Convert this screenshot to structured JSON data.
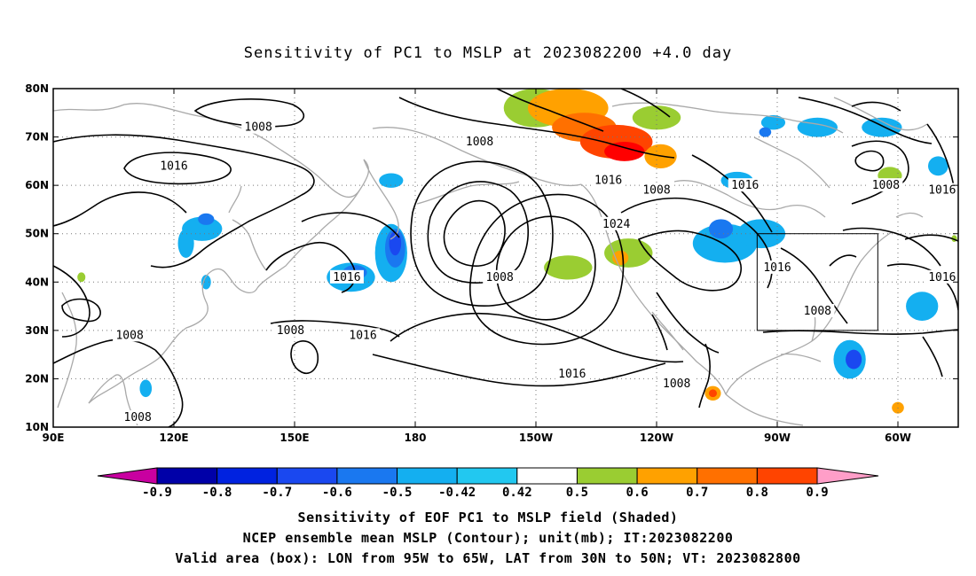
{
  "title": "Sensitivity of PC1 to MSLP at 2023082200 +4.0 day",
  "axes": {
    "lon_ticks": [
      {
        "lon": 90,
        "label": "90E"
      },
      {
        "lon": 120,
        "label": "120E"
      },
      {
        "lon": 150,
        "label": "150E"
      },
      {
        "lon": 180,
        "label": "180"
      },
      {
        "lon": 210,
        "label": "150W"
      },
      {
        "lon": 240,
        "label": "120W"
      },
      {
        "lon": 270,
        "label": "90W"
      },
      {
        "lon": 300,
        "label": "60W"
      }
    ],
    "lat_ticks": [
      {
        "lat": 10,
        "label": "10N"
      },
      {
        "lat": 20,
        "label": "20N"
      },
      {
        "lat": 30,
        "label": "30N"
      },
      {
        "lat": 40,
        "label": "40N"
      },
      {
        "lat": 50,
        "label": "50N"
      },
      {
        "lat": 60,
        "label": "60N"
      },
      {
        "lat": 70,
        "label": "70N"
      },
      {
        "lat": 80,
        "label": "80N"
      }
    ],
    "lon_range": [
      90,
      315
    ],
    "lat_range": [
      10,
      80
    ]
  },
  "valid_box": {
    "lon": [
      265,
      295
    ],
    "lat": [
      30,
      50
    ]
  },
  "contour_labels": [
    {
      "text": "1008",
      "lon": 141,
      "lat": 72
    },
    {
      "text": "1016",
      "lon": 120,
      "lat": 64
    },
    {
      "text": "1008",
      "lon": 196,
      "lat": 69
    },
    {
      "text": "1016",
      "lon": 228,
      "lat": 61
    },
    {
      "text": "1008",
      "lon": 240,
      "lat": 59
    },
    {
      "text": "1016",
      "lon": 262,
      "lat": 60
    },
    {
      "text": "1008",
      "lon": 297,
      "lat": 60
    },
    {
      "text": "1016",
      "lon": 311,
      "lat": 59
    },
    {
      "text": "1024",
      "lon": 230,
      "lat": 52
    },
    {
      "text": "1008",
      "lon": 201,
      "lat": 41
    },
    {
      "text": "1016",
      "lon": 163,
      "lat": 41
    },
    {
      "text": "1016",
      "lon": 270,
      "lat": 43
    },
    {
      "text": "1016",
      "lon": 311,
      "lat": 41
    },
    {
      "text": "1008",
      "lon": 280,
      "lat": 34
    },
    {
      "text": "1008",
      "lon": 109,
      "lat": 29
    },
    {
      "text": "1008",
      "lon": 149,
      "lat": 30
    },
    {
      "text": "1016",
      "lon": 167,
      "lat": 29
    },
    {
      "text": "1016",
      "lon": 219,
      "lat": 21
    },
    {
      "text": "1008",
      "lon": 245,
      "lat": 19
    },
    {
      "text": "1008",
      "lon": 111,
      "lat": 12
    }
  ],
  "shaded_regions": [
    {
      "lon": 210,
      "lat": 76,
      "rx": 8,
      "ry": 4,
      "value": 0.5
    },
    {
      "lon": 218,
      "lat": 76,
      "rx": 10,
      "ry": 4,
      "value": 0.6
    },
    {
      "lon": 222,
      "lat": 72,
      "rx": 8,
      "ry": 3,
      "value": 0.7
    },
    {
      "lon": 230,
      "lat": 69,
      "rx": 9,
      "ry": 3.5,
      "value": 0.8
    },
    {
      "lon": 232,
      "lat": 67,
      "rx": 5,
      "ry": 2,
      "value": 0.9
    },
    {
      "lon": 241,
      "lat": 66,
      "rx": 4,
      "ry": 2.5,
      "value": 0.6
    },
    {
      "lon": 240,
      "lat": 74,
      "rx": 6,
      "ry": 2.5,
      "value": 0.5
    },
    {
      "lon": 218,
      "lat": 43,
      "rx": 6,
      "ry": 2.5,
      "value": 0.5
    },
    {
      "lon": 233,
      "lat": 46,
      "rx": 6,
      "ry": 3,
      "value": 0.5
    },
    {
      "lon": 231,
      "lat": 45,
      "rx": 2,
      "ry": 1.5,
      "value": 0.6
    },
    {
      "lon": 298,
      "lat": 62,
      "rx": 3,
      "ry": 1.8,
      "value": 0.5
    },
    {
      "lon": 257,
      "lat": 48,
      "rx": 8,
      "ry": 4,
      "value": -0.5
    },
    {
      "lon": 266,
      "lat": 50,
      "rx": 6,
      "ry": 3,
      "value": -0.5
    },
    {
      "lon": 256,
      "lat": 51,
      "rx": 3,
      "ry": 2,
      "value": -0.6
    },
    {
      "lon": 260,
      "lat": 61,
      "rx": 4,
      "ry": 1.8,
      "value": -0.5
    },
    {
      "lon": 174,
      "lat": 46,
      "rx": 4,
      "ry": 6,
      "value": -0.5
    },
    {
      "lon": 175,
      "lat": 47,
      "rx": 2.5,
      "ry": 4,
      "value": -0.6
    },
    {
      "lon": 175,
      "lat": 48,
      "rx": 1.5,
      "ry": 2.5,
      "value": -0.7
    },
    {
      "lon": 164,
      "lat": 41,
      "rx": 6,
      "ry": 3,
      "value": -0.5
    },
    {
      "lon": 165,
      "lat": 42,
      "rx": 3,
      "ry": 1.5,
      "value": -0.6
    },
    {
      "lon": 174,
      "lat": 61,
      "rx": 3,
      "ry": 1.5,
      "value": -0.5
    },
    {
      "lon": 127,
      "lat": 51,
      "rx": 5,
      "ry": 2.5,
      "value": -0.5
    },
    {
      "lon": 128,
      "lat": 53,
      "rx": 2,
      "ry": 1.2,
      "value": -0.6
    },
    {
      "lon": 123,
      "lat": 48,
      "rx": 2,
      "ry": 3,
      "value": -0.5
    },
    {
      "lon": 288,
      "lat": 24,
      "rx": 4,
      "ry": 4,
      "value": -0.5
    },
    {
      "lon": 289,
      "lat": 24,
      "rx": 2,
      "ry": 2,
      "value": -0.7
    },
    {
      "lon": 306,
      "lat": 35,
      "rx": 4,
      "ry": 3,
      "value": -0.5
    },
    {
      "lon": 280,
      "lat": 72,
      "rx": 5,
      "ry": 2,
      "value": -0.5
    },
    {
      "lon": 296,
      "lat": 72,
      "rx": 5,
      "ry": 2,
      "value": -0.5
    },
    {
      "lon": 269,
      "lat": 73,
      "rx": 3,
      "ry": 1.5,
      "value": -0.5
    },
    {
      "lon": 267,
      "lat": 71,
      "rx": 1.5,
      "ry": 1,
      "value": -0.6
    },
    {
      "lon": 310,
      "lat": 64,
      "rx": 2.5,
      "ry": 2,
      "value": -0.5
    },
    {
      "lon": 113,
      "lat": 18,
      "rx": 1.5,
      "ry": 1.8,
      "value": -0.5
    },
    {
      "lon": 128,
      "lat": 40,
      "rx": 1.2,
      "ry": 1.5,
      "value": -0.5
    },
    {
      "lon": 254,
      "lat": 17,
      "rx": 2,
      "ry": 1.5,
      "value": 0.6
    },
    {
      "lon": 254,
      "lat": 17,
      "rx": 1,
      "ry": 0.8,
      "value": 0.8
    },
    {
      "lon": 300,
      "lat": 14,
      "rx": 1.5,
      "ry": 1.2,
      "value": 0.6
    },
    {
      "lon": 97,
      "lat": 41,
      "rx": 1,
      "ry": 1,
      "value": 0.5
    },
    {
      "lon": 314,
      "lat": 49,
      "rx": 0.7,
      "ry": 0.7,
      "value": 0.5
    }
  ],
  "colorbar": {
    "levels": [
      "-0.9",
      "-0.8",
      "-0.7",
      "-0.6",
      "-0.5",
      "-0.42",
      "0.42",
      "0.5",
      "0.6",
      "0.7",
      "0.8",
      "0.9"
    ],
    "colors": [
      "#0000a8",
      "#0022e0",
      "#1a48f0",
      "#1a78f0",
      "#14aff0",
      "#22c8f0",
      "#ffffff",
      "#9acd32",
      "#ffa100",
      "#ff7000",
      "#ff4400",
      "#ff0000"
    ],
    "low_cap_color": "#c800a0",
    "high_cap_color": "#ff9ec8"
  },
  "captions": [
    "Sensitivity of EOF PC1 to MSLP field (Shaded)",
    "NCEP ensemble mean MSLP (Contour); unit(mb); IT:2023082200",
    "Valid area (box): LON from 95W to 65W, LAT from 30N to 50N; VT: 2023082800"
  ]
}
